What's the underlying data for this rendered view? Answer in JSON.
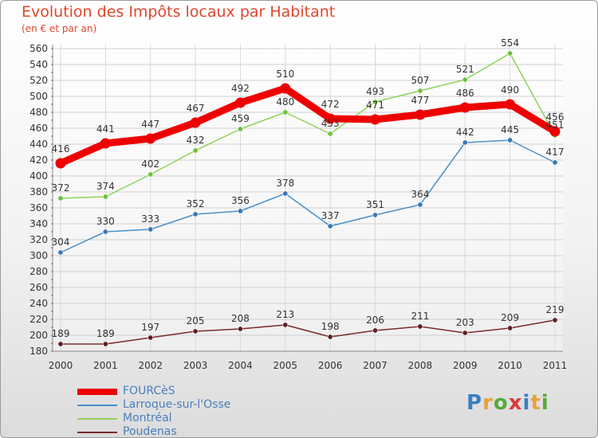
{
  "header": {
    "title": "Evolution des Impôts locaux par Habitant",
    "subtitle": "(en € et par an)"
  },
  "logo": {
    "text": "Proxiti",
    "letters": [
      {
        "ch": "P",
        "color": "#3a7fc1"
      },
      {
        "ch": "r",
        "color": "#e8a33d"
      },
      {
        "ch": "o",
        "color": "#59a83b"
      },
      {
        "ch": "x",
        "color": "#d8393a"
      },
      {
        "ch": "i",
        "color": "#3a7fc1"
      },
      {
        "ch": "t",
        "color": "#e8a33d"
      },
      {
        "ch": "i",
        "color": "#59a83b"
      }
    ]
  },
  "chart_data": {
    "type": "line",
    "title": "Evolution des Impôts locaux par Habitant",
    "subtitle": "(en € et par an)",
    "xlabel": "",
    "ylabel": "",
    "x": [
      "2000",
      "2001",
      "2002",
      "2003",
      "2004",
      "2005",
      "2006",
      "2007",
      "2008",
      "2009",
      "2010",
      "2011"
    ],
    "ylim": [
      180,
      560
    ],
    "yticks": [
      180,
      200,
      220,
      240,
      260,
      280,
      300,
      320,
      340,
      360,
      380,
      400,
      420,
      440,
      460,
      480,
      500,
      520,
      540,
      560
    ],
    "grid": true,
    "legend_position": "bottom-left",
    "series": [
      {
        "name": "FOURCèS",
        "color": "#ee0000",
        "emphasis": true,
        "values": [
          416,
          441,
          447,
          467,
          492,
          510,
          472,
          471,
          477,
          486,
          490,
          456
        ],
        "labels": [
          "416",
          "441",
          "447",
          "467",
          "492",
          "510",
          "472",
          "471",
          "477",
          "486",
          "490",
          "456"
        ]
      },
      {
        "name": "Larroque-sur-l'Osse",
        "color": "#4a90c8",
        "point_color": "#3a78b5",
        "emphasis": false,
        "values": [
          304,
          330,
          333,
          352,
          356,
          378,
          337,
          351,
          364,
          442,
          445,
          417
        ],
        "labels": [
          "304",
          "330",
          "333",
          "352",
          "356",
          "378",
          "337",
          "351",
          "364",
          "442",
          "445",
          "417"
        ]
      },
      {
        "name": "Montréal",
        "color": "#8fd45a",
        "point_color": "#6cc13a",
        "emphasis": false,
        "values": [
          372,
          374,
          402,
          432,
          459,
          480,
          453,
          493,
          507,
          521,
          554,
          451
        ],
        "labels": [
          "372",
          "374",
          "402",
          "432",
          "459",
          "480",
          "453",
          "493",
          "507",
          "521",
          "554",
          "451"
        ]
      },
      {
        "name": "Poudenas",
        "color": "#7a2a2a",
        "point_color": "#5e1f1f",
        "emphasis": false,
        "values": [
          189,
          189,
          197,
          205,
          208,
          213,
          198,
          206,
          211,
          203,
          209,
          219
        ],
        "labels": [
          "189",
          "189",
          "197",
          "205",
          "208",
          "213",
          "198",
          "206",
          "211",
          "203",
          "209",
          "219"
        ]
      }
    ]
  }
}
